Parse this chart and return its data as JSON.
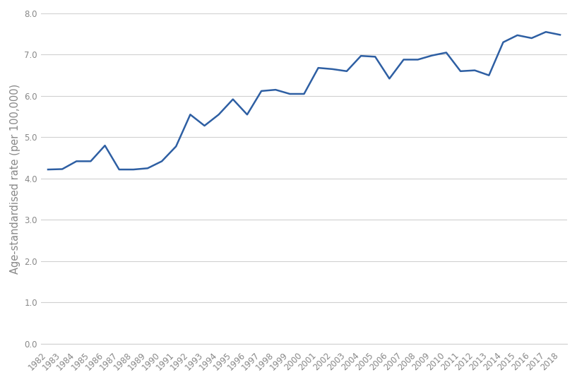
{
  "years": [
    1982,
    1983,
    1984,
    1985,
    1986,
    1987,
    1988,
    1989,
    1990,
    1991,
    1992,
    1993,
    1994,
    1995,
    1996,
    1997,
    1998,
    1999,
    2000,
    2001,
    2002,
    2003,
    2004,
    2005,
    2006,
    2007,
    2008,
    2009,
    2010,
    2011,
    2012,
    2013,
    2014,
    2015,
    2016,
    2017,
    2018
  ],
  "values": [
    4.22,
    4.23,
    4.42,
    4.42,
    4.8,
    4.22,
    4.22,
    4.25,
    4.42,
    4.78,
    5.55,
    5.28,
    5.55,
    5.92,
    5.55,
    6.12,
    6.15,
    6.05,
    6.05,
    6.68,
    6.65,
    6.6,
    6.97,
    6.95,
    6.42,
    6.88,
    6.88,
    6.98,
    7.05,
    6.6,
    6.62,
    6.5,
    7.3,
    7.47,
    7.4,
    7.55,
    7.48
  ],
  "line_color": "#2e5fa3",
  "line_width": 1.8,
  "ylabel": "Age-standardised rate (per 100,000)",
  "ylim": [
    0.0,
    8.0
  ],
  "yticks": [
    0.0,
    1.0,
    2.0,
    3.0,
    4.0,
    5.0,
    6.0,
    7.0,
    8.0
  ],
  "grid_color": "#d0d0d0",
  "background_color": "#ffffff",
  "tick_label_fontsize": 8.5,
  "ylabel_fontsize": 10.5,
  "xlabel_rotation": 45,
  "tick_color": "#888888"
}
